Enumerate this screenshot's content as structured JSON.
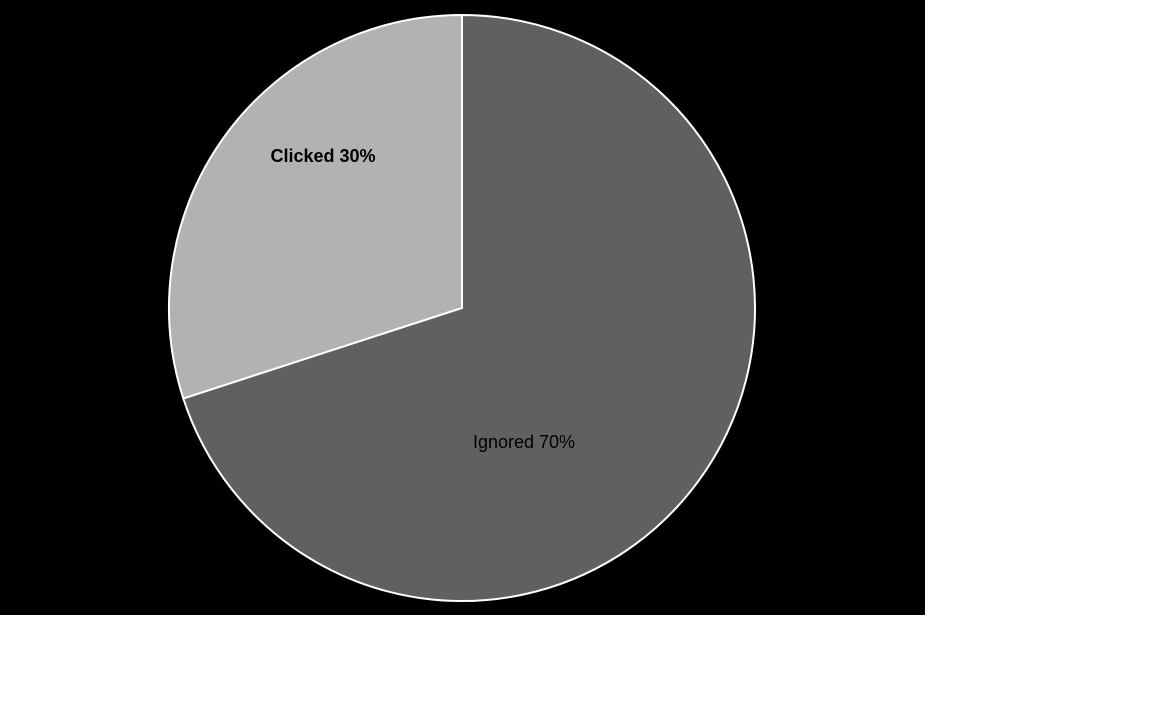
{
  "chart_data": {
    "type": "pie",
    "slices": [
      {
        "label": "Clicked 30%",
        "category": "Clicked",
        "value": 30,
        "color": "#b2b2b2",
        "label_color": "#000000",
        "label_bold": true
      },
      {
        "label": "Ignored 70%",
        "category": "Ignored",
        "value": 70,
        "color": "#606060",
        "label_color": "#000000",
        "label_bold": false
      }
    ],
    "start_angle_deg": 0,
    "direction": "clockwise_from_top_for_ignored"
  },
  "colors": {
    "background": "#000000",
    "page": "#ffffff",
    "slice_border": "#ffffff"
  }
}
